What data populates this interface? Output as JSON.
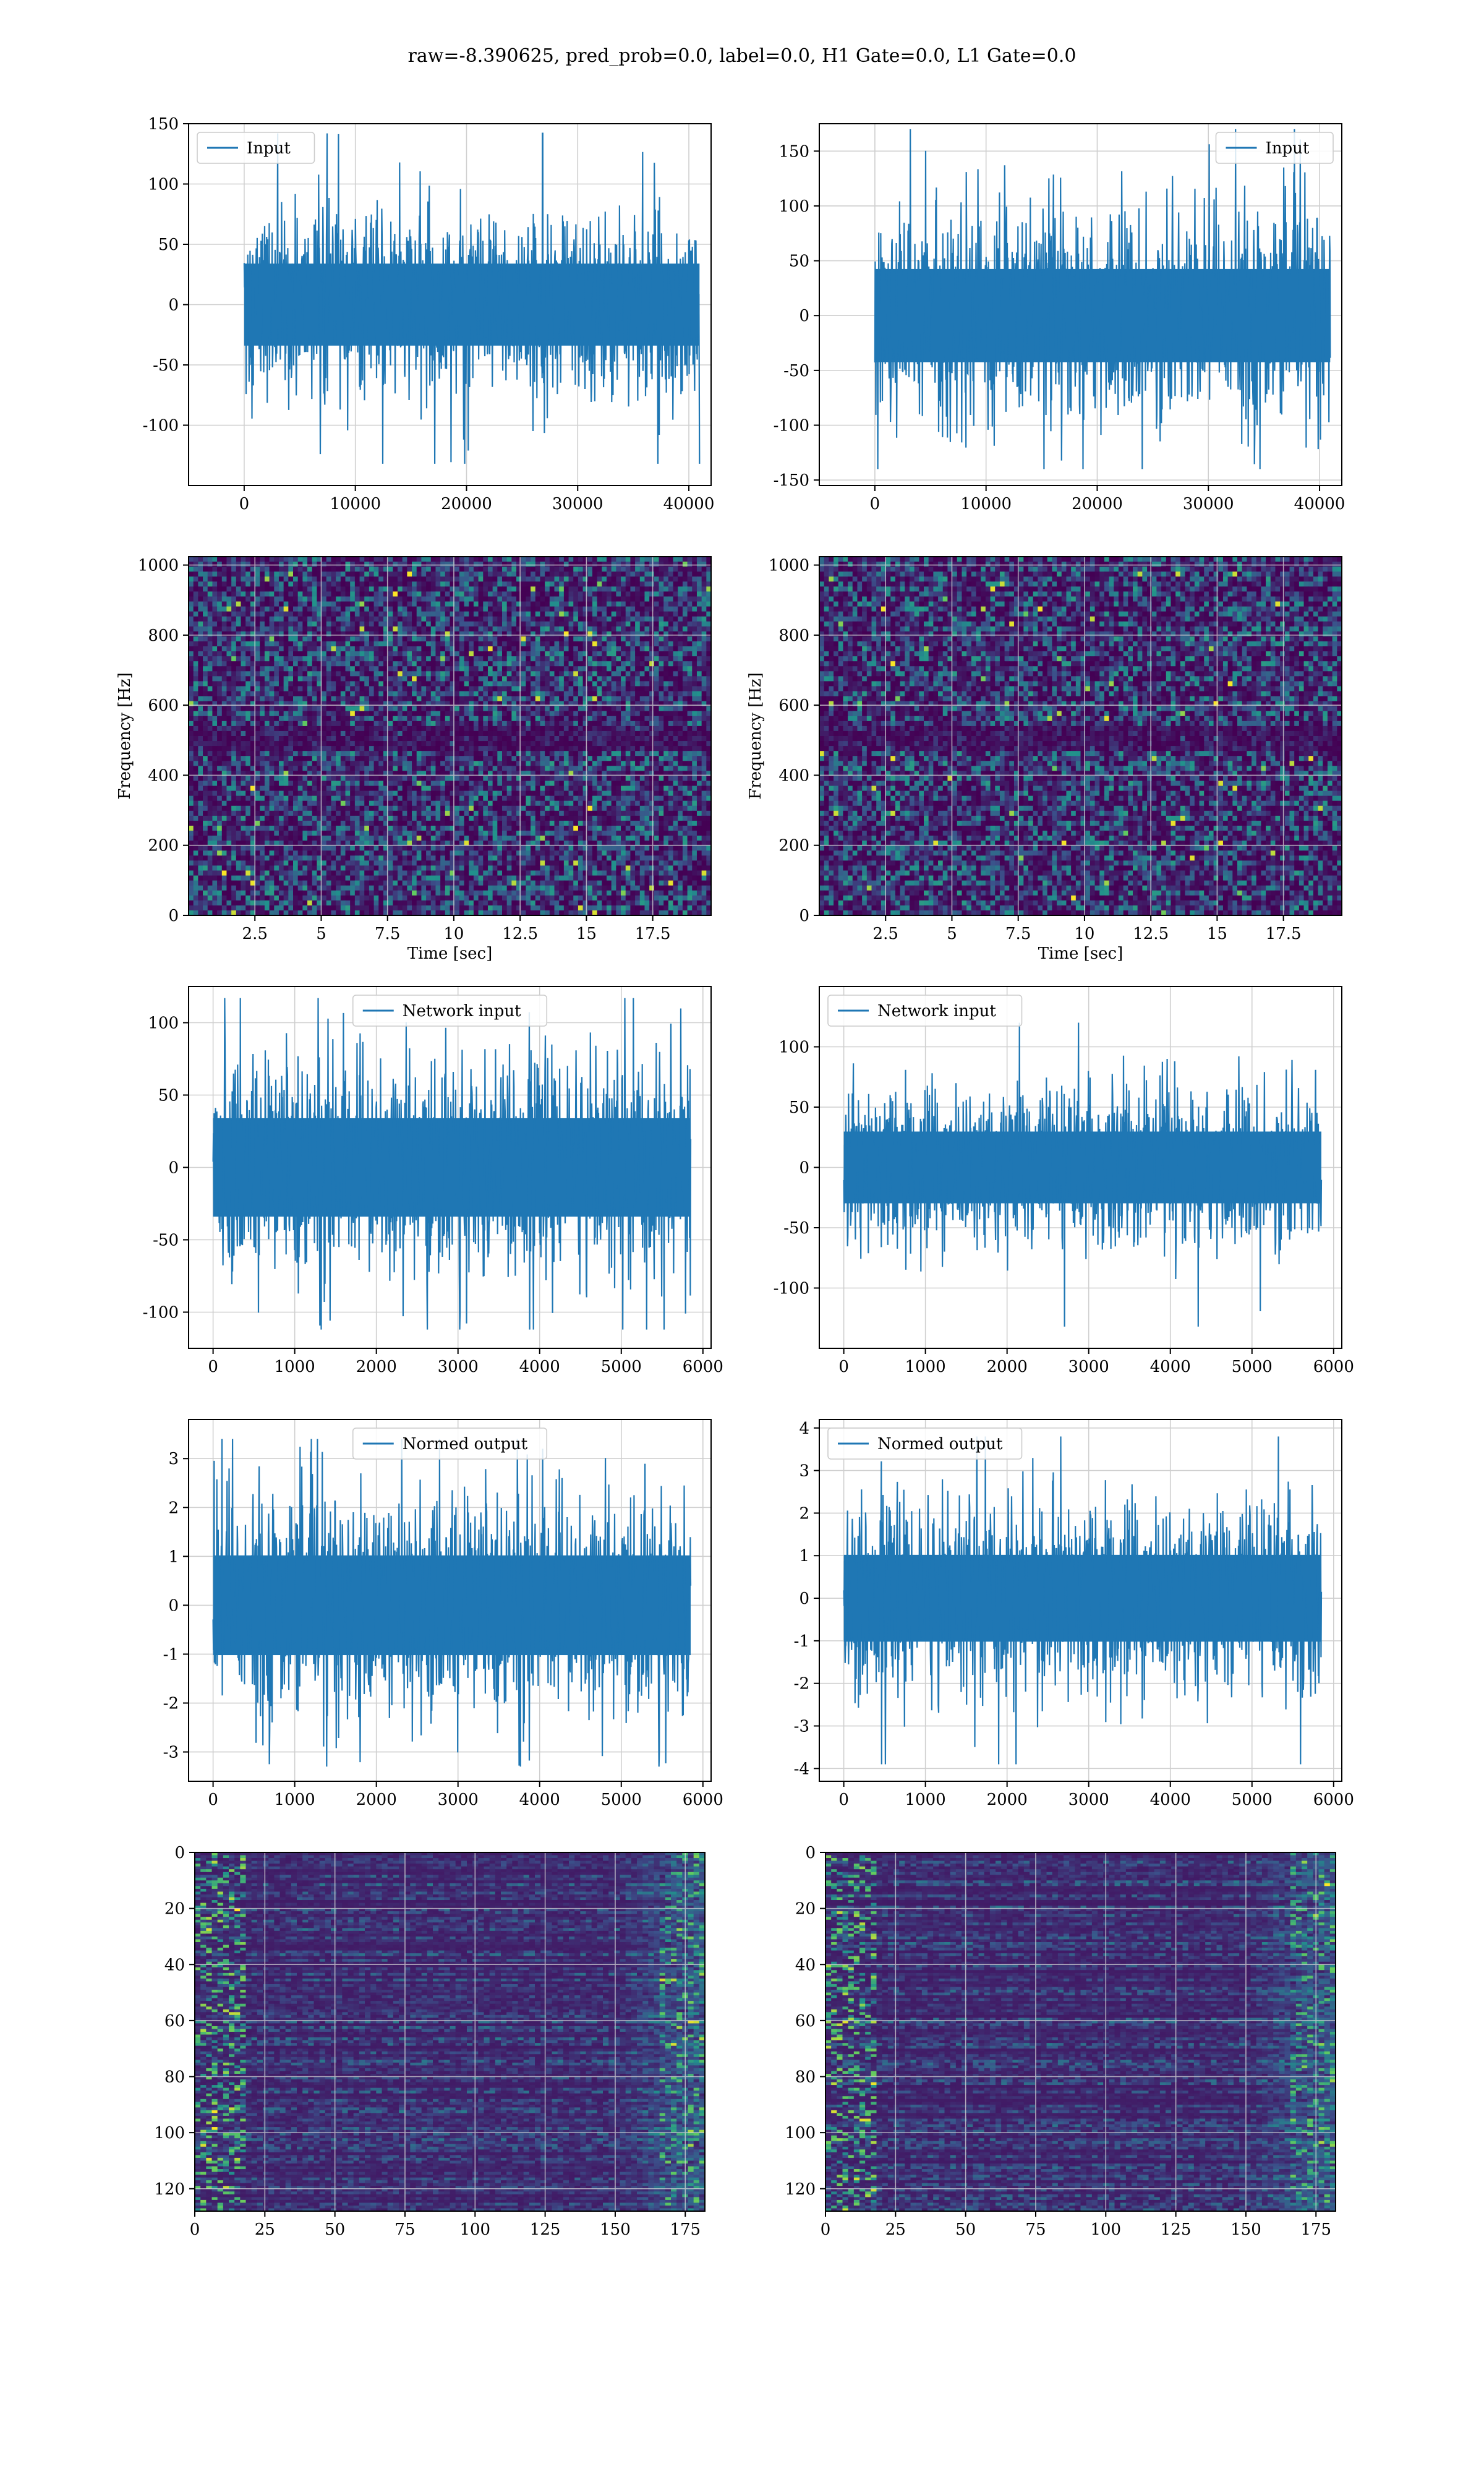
{
  "title": "raw=-8.390625, pred_prob=0.0, label=0.0, H1 Gate=0.0, L1 Gate=0.0",
  "colors": {
    "line": "#1f77b4",
    "grid": "#b0b0b0",
    "frame": "#000000",
    "heat": [
      "#440154",
      "#3b528b",
      "#21918c",
      "#5ec962",
      "#fde725"
    ]
  },
  "chart_data": [
    {
      "id": "h1-input",
      "type": "line",
      "legend": "Input",
      "legend_loc": "upper-left",
      "xlim": [
        -5000,
        42000
      ],
      "ylim": [
        -150,
        150
      ],
      "xticks": [
        0,
        10000,
        20000,
        30000,
        40000
      ],
      "yticks": [
        -100,
        -50,
        0,
        50,
        100,
        150
      ],
      "x_extent": [
        0,
        40960
      ],
      "band": [
        -40,
        40
      ],
      "spike_max": 142,
      "spike_min": -132
    },
    {
      "id": "l1-input",
      "type": "line",
      "legend": "Input",
      "legend_loc": "upper-right",
      "xlim": [
        -5000,
        42000
      ],
      "ylim": [
        -155,
        175
      ],
      "xticks": [
        0,
        10000,
        20000,
        30000,
        40000
      ],
      "yticks": [
        -150,
        -100,
        -50,
        0,
        50,
        100,
        150
      ],
      "x_extent": [
        0,
        40960
      ],
      "band": [
        -50,
        50
      ],
      "spike_max": 170,
      "spike_min": -140
    },
    {
      "id": "h1-spectrogram",
      "type": "heatmap",
      "xlabel": "Time [sec]",
      "ylabel": "Frequency [Hz]",
      "xlim": [
        0,
        19.7
      ],
      "ylim": [
        0,
        1024
      ],
      "xticks": [
        2.5,
        5.0,
        7.5,
        10.0,
        12.5,
        15.0,
        17.5
      ],
      "yticks": [
        0,
        200,
        400,
        600,
        800,
        1000
      ]
    },
    {
      "id": "l1-spectrogram",
      "type": "heatmap",
      "xlabel": "Time [sec]",
      "ylabel": "Frequency [Hz]",
      "xlim": [
        0,
        19.7
      ],
      "ylim": [
        0,
        1024
      ],
      "xticks": [
        2.5,
        5.0,
        7.5,
        10.0,
        12.5,
        15.0,
        17.5
      ],
      "yticks": [
        0,
        200,
        400,
        600,
        800,
        1000
      ]
    },
    {
      "id": "h1-network-input",
      "type": "line",
      "legend": "Network input",
      "legend_loc": "upper-center",
      "xlim": [
        -300,
        6100
      ],
      "ylim": [
        -125,
        125
      ],
      "xticks": [
        0,
        1000,
        2000,
        3000,
        4000,
        5000,
        6000
      ],
      "yticks": [
        -100,
        -50,
        0,
        50,
        100
      ],
      "x_extent": [
        0,
        5850
      ],
      "band": [
        -40,
        40
      ],
      "spike_max": 117,
      "spike_min": -112
    },
    {
      "id": "l1-network-input",
      "type": "line",
      "legend": "Network input",
      "legend_loc": "upper-left",
      "xlim": [
        -300,
        6100
      ],
      "ylim": [
        -150,
        150
      ],
      "xticks": [
        0,
        1000,
        2000,
        3000,
        4000,
        5000,
        6000
      ],
      "yticks": [
        -100,
        -50,
        0,
        50,
        100
      ],
      "x_extent": [
        0,
        5850
      ],
      "band": [
        -35,
        35
      ],
      "spike_max": 120,
      "spike_min": -132
    },
    {
      "id": "h1-normed-output",
      "type": "line",
      "legend": "Normed output",
      "legend_loc": "upper-center",
      "xlim": [
        -300,
        6100
      ],
      "ylim": [
        -3.6,
        3.8
      ],
      "xticks": [
        0,
        1000,
        2000,
        3000,
        4000,
        5000,
        6000
      ],
      "yticks": [
        -3,
        -2,
        -1,
        0,
        1,
        2,
        3
      ],
      "x_extent": [
        0,
        5850
      ],
      "band": [
        -1.2,
        1.2
      ],
      "spike_max": 3.4,
      "spike_min": -3.3
    },
    {
      "id": "l1-normed-output",
      "type": "line",
      "legend": "Normed output",
      "legend_loc": "upper-left",
      "xlim": [
        -300,
        6100
      ],
      "ylim": [
        -4.3,
        4.2
      ],
      "xticks": [
        0,
        1000,
        2000,
        3000,
        4000,
        5000,
        6000
      ],
      "yticks": [
        -4,
        -3,
        -2,
        -1,
        0,
        1,
        2,
        3,
        4
      ],
      "x_extent": [
        0,
        5850
      ],
      "band": [
        -1.2,
        1.2
      ],
      "spike_max": 3.8,
      "spike_min": -3.9
    },
    {
      "id": "h1-feature-map",
      "type": "heatmap",
      "xlim": [
        0,
        182
      ],
      "ylim": [
        128,
        0
      ],
      "y_inverted": true,
      "xticks": [
        0,
        25,
        50,
        75,
        100,
        125,
        150,
        175
      ],
      "yticks": [
        0,
        20,
        40,
        60,
        80,
        100,
        120
      ]
    },
    {
      "id": "l1-feature-map",
      "type": "heatmap",
      "xlim": [
        0,
        182
      ],
      "ylim": [
        128,
        0
      ],
      "y_inverted": true,
      "xticks": [
        0,
        25,
        50,
        75,
        100,
        125,
        150,
        175
      ],
      "yticks": [
        0,
        20,
        40,
        60,
        80,
        100,
        120
      ]
    }
  ]
}
